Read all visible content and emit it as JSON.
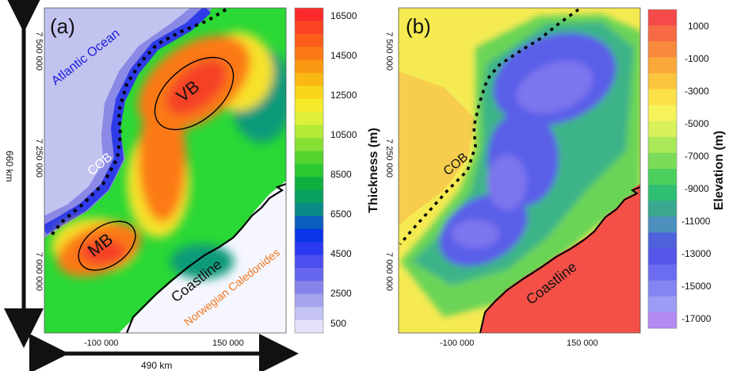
{
  "panel_a": {
    "label": "(a)",
    "y_ticks": [
      "7 500 000",
      "7 250 000",
      "7 000 000"
    ],
    "x_ticks": [
      "-100 000",
      "150 000"
    ],
    "labels": {
      "ocean": "Atlantic Ocean",
      "cob": "COB",
      "vb": "VB",
      "mb": "MB",
      "coastline": "Coastline",
      "caledonides": "Norwegian Caledonides"
    },
    "colorbar": {
      "title": "Thickness (m)",
      "ticks": [
        "16500",
        "14500",
        "12500",
        "10500",
        "8500",
        "6500",
        "4500",
        "2500",
        "500"
      ],
      "colors": [
        "#fa2a2a",
        "#fb4324",
        "#fb5d1c",
        "#fb7a15",
        "#fb9a12",
        "#fbb814",
        "#fbd41c",
        "#f6eb2a",
        "#dff03a",
        "#b3ea38",
        "#86e034",
        "#55d42e",
        "#2cc831",
        "#10b040",
        "#0aa060",
        "#0a8a86",
        "#0a5fbd",
        "#0a34e8",
        "#2a3af0",
        "#4b4ff0",
        "#6666ee",
        "#8584ea",
        "#a5a3ec",
        "#c4c3f2",
        "#e3e2fa"
      ]
    },
    "scale_vertical": "660 km",
    "scale_horizontal": "490 km",
    "colors": {
      "bg": "#2ad836",
      "ocean_light": "#c2c3ef",
      "ocean_mid": "#8a89e6",
      "ocean_blue": "#2f3be6",
      "teal": "#0e9a7a",
      "thick_orange": "#fb7a15",
      "thick_red": "#f54325",
      "yellow": "#f6e22a",
      "white_land": "#f6f6fe"
    }
  },
  "panel_b": {
    "label": "(b)",
    "y_ticks": [
      "7 500 000",
      "7 250 000",
      "7 000 000"
    ],
    "x_ticks": [
      "-100 000",
      "150 000"
    ],
    "labels": {
      "cob": "COB",
      "coastline": "Coastline"
    },
    "colorbar": {
      "title": "Elevation (m)",
      "ticks": [
        "1000",
        "-1000",
        "-3000",
        "-5000",
        "-7000",
        "-9000",
        "-11000",
        "-13000",
        "-15000",
        "-17000"
      ],
      "colors": [
        "#f54a4a",
        "#f66a44",
        "#f88a3e",
        "#f9a83a",
        "#fbc63e",
        "#fbe048",
        "#f6f25a",
        "#d8f05a",
        "#a9e858",
        "#7adc58",
        "#4dcf5e",
        "#2fbf72",
        "#3aa88f",
        "#4d8fbd",
        "#4f62dc",
        "#5656ea",
        "#6c6cf0",
        "#8484f2",
        "#9c9cf4",
        "#b48af2"
      ]
    },
    "colors": {
      "bg": "#f5ea52",
      "green": "#6ad456",
      "teal": "#3cb488",
      "blue": "#5a5ee8",
      "purple": "#7d74ee",
      "land_red": "#f55048",
      "orange": "#f7b54a"
    }
  }
}
